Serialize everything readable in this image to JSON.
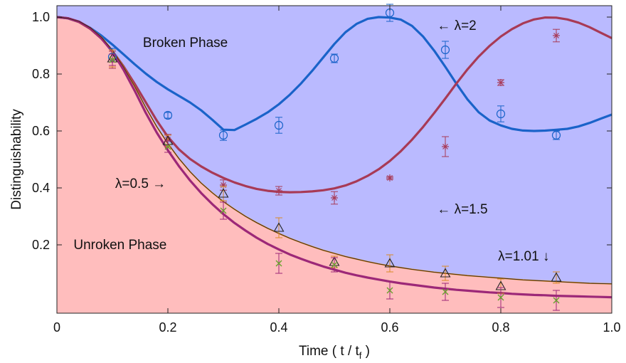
{
  "chart_data": {
    "type": "line",
    "title": "",
    "xlabel": "Time ( t / t",
    "xlabel_sub": "f",
    "xlabel_end": " )",
    "ylabel": "Distinguishability",
    "xlim": [
      0,
      1.0
    ],
    "ylim": [
      -0.04,
      1.04
    ],
    "x_ticks": [
      0,
      0.2,
      0.4,
      0.6,
      0.8,
      1.0
    ],
    "x_tick_labels": [
      "0",
      "0.2",
      "0.4",
      "0.6",
      "0.8",
      "1.0"
    ],
    "y_ticks": [
      0.2,
      0.4,
      0.6,
      0.8,
      1.0
    ],
    "y_tick_labels": [
      "0.2",
      "0.4",
      "0.6",
      "0.8",
      "1.0"
    ],
    "grid": false,
    "regions": [
      {
        "label": "Broken Phase",
        "color": "#babaff"
      },
      {
        "label": "Unroken Phase",
        "color": "#ffbdbd"
      }
    ],
    "series": [
      {
        "name": "λ=2",
        "color": "#1a63c9",
        "marker": "circle",
        "curve": {
          "x": [
            0,
            0.02,
            0.04,
            0.06,
            0.08,
            0.1,
            0.12,
            0.14,
            0.16,
            0.18,
            0.2,
            0.22,
            0.24,
            0.26,
            0.28,
            0.3,
            0.32,
            0.34,
            0.36,
            0.38,
            0.4,
            0.42,
            0.44,
            0.46,
            0.48,
            0.5,
            0.52,
            0.54,
            0.56,
            0.58,
            0.6,
            0.62,
            0.64,
            0.66,
            0.68,
            0.7,
            0.72,
            0.74,
            0.76,
            0.78,
            0.8,
            0.82,
            0.84,
            0.86,
            0.88,
            0.9,
            0.92,
            0.94,
            0.96,
            0.98,
            1.0
          ],
          "y": [
            1.0,
            0.9956,
            0.9827,
            0.9621,
            0.9351,
            0.9035,
            0.8692,
            0.8346,
            0.8017,
            0.7721,
            0.7462,
            0.7233,
            0.7,
            0.6725,
            0.6395,
            0.6044,
            0.6032,
            0.6224,
            0.6427,
            0.6655,
            0.6937,
            0.7278,
            0.7671,
            0.8111,
            0.8582,
            0.9056,
            0.9468,
            0.9761,
            0.9939,
            1.0,
            0.9982,
            0.991,
            0.969,
            0.9314,
            0.8821,
            0.8253,
            0.7661,
            0.7107,
            0.6661,
            0.6365,
            0.6195,
            0.6075,
            0.6014,
            0.5999,
            0.6012,
            0.6042,
            0.6075,
            0.6158,
            0.6283,
            0.6431,
            0.6574
          ]
        },
        "points": {
          "x": [
            0.1,
            0.2,
            0.3,
            0.4,
            0.5,
            0.6,
            0.7,
            0.8,
            0.9
          ],
          "y": [
            0.86,
            0.655,
            0.585,
            0.62,
            0.855,
            1.015,
            0.885,
            0.66,
            0.585
          ],
          "err": [
            0.03,
            0.01,
            0.018,
            0.028,
            0.015,
            0.03,
            0.03,
            0.028,
            0.015
          ]
        }
      },
      {
        "name": "λ=1.5",
        "color": "#a83a56",
        "marker": "star",
        "curve": {
          "x": [
            0,
            0.02,
            0.04,
            0.06,
            0.08,
            0.1,
            0.12,
            0.14,
            0.16,
            0.18,
            0.2,
            0.22,
            0.24,
            0.26,
            0.28,
            0.3,
            0.32,
            0.34,
            0.36,
            0.38,
            0.4,
            0.42,
            0.44,
            0.46,
            0.48,
            0.5,
            0.52,
            0.54,
            0.56,
            0.58,
            0.6,
            0.62,
            0.64,
            0.66,
            0.68,
            0.7,
            0.72,
            0.74,
            0.76,
            0.78,
            0.8,
            0.82,
            0.84,
            0.86,
            0.88,
            0.9,
            0.92,
            0.94,
            0.96,
            0.98,
            1.0
          ],
          "y": [
            1.0,
            0.9958,
            0.9826,
            0.9588,
            0.9246,
            0.8807,
            0.8272,
            0.7663,
            0.7015,
            0.6366,
            0.5794,
            0.5353,
            0.5018,
            0.4754,
            0.4535,
            0.4349,
            0.4193,
            0.4066,
            0.3966,
            0.3898,
            0.386,
            0.3848,
            0.3854,
            0.3877,
            0.3917,
            0.3983,
            0.4085,
            0.4232,
            0.4423,
            0.4656,
            0.4944,
            0.5292,
            0.5694,
            0.6142,
            0.6631,
            0.7141,
            0.7667,
            0.8165,
            0.8609,
            0.8993,
            0.9317,
            0.9578,
            0.9779,
            0.9917,
            0.9986,
            0.9981,
            0.9917,
            0.9804,
            0.9645,
            0.9452,
            0.9261
          ]
        },
        "points": {
          "x": [
            0.1,
            0.2,
            0.3,
            0.4,
            0.5,
            0.6,
            0.7,
            0.8,
            0.9
          ],
          "y": [
            0.85,
            0.57,
            0.41,
            0.39,
            0.365,
            0.435,
            0.545,
            0.77,
            0.935
          ],
          "err": [
            0.03,
            0.018,
            0.018,
            0.015,
            0.022,
            0.005,
            0.035,
            0.01,
            0.022
          ]
        }
      },
      {
        "name": "λ=1.01",
        "color": "#d98a27",
        "marker": "triangle",
        "curve": {
          "x": [
            0,
            0.02,
            0.04,
            0.06,
            0.08,
            0.1,
            0.12,
            0.14,
            0.16,
            0.18,
            0.2,
            0.22,
            0.24,
            0.26,
            0.28,
            0.3,
            0.32,
            0.34,
            0.36,
            0.38,
            0.4,
            0.42,
            0.44,
            0.46,
            0.48,
            0.5,
            0.52,
            0.54,
            0.56,
            0.58,
            0.6,
            0.62,
            0.64,
            0.66,
            0.68,
            0.7,
            0.72,
            0.74,
            0.76,
            0.78,
            0.8,
            0.82,
            0.84,
            0.86,
            0.88,
            0.9,
            0.92,
            0.94,
            0.96,
            0.98,
            1.0
          ],
          "y": [
            1.0,
            0.996,
            0.985,
            0.963,
            0.93,
            0.884,
            0.825,
            0.757,
            0.683,
            0.615,
            0.556,
            0.503,
            0.457,
            0.417,
            0.383,
            0.352,
            0.325,
            0.3,
            0.278,
            0.258,
            0.24,
            0.223,
            0.208,
            0.194,
            0.181,
            0.17,
            0.159,
            0.15,
            0.141,
            0.133,
            0.126,
            0.12,
            0.114,
            0.109,
            0.104,
            0.1,
            0.096,
            0.092,
            0.089,
            0.086,
            0.083,
            0.08,
            0.077,
            0.075,
            0.073,
            0.071,
            0.069,
            0.067,
            0.065,
            0.064,
            0.063
          ]
        },
        "points": {
          "x": [
            0.1,
            0.2,
            0.3,
            0.4,
            0.5,
            0.6,
            0.7,
            0.8,
            0.9
          ],
          "y": [
            0.855,
            0.565,
            0.38,
            0.26,
            0.14,
            0.135,
            0.1,
            0.055,
            0.085
          ],
          "err": [
            0.03,
            0.02,
            0.025,
            0.035,
            0.02,
            0.03,
            0.025,
            0.025,
            0.02
          ]
        }
      },
      {
        "name": "λ=0.5",
        "color": "#9c2878",
        "marker": "x",
        "curve": {
          "x": [
            0,
            0.02,
            0.04,
            0.06,
            0.08,
            0.1,
            0.12,
            0.14,
            0.16,
            0.18,
            0.2,
            0.22,
            0.24,
            0.26,
            0.28,
            0.3,
            0.32,
            0.34,
            0.36,
            0.38,
            0.4,
            0.42,
            0.44,
            0.46,
            0.48,
            0.5,
            0.52,
            0.54,
            0.56,
            0.58,
            0.6,
            0.62,
            0.64,
            0.66,
            0.68,
            0.7,
            0.72,
            0.74,
            0.76,
            0.78,
            0.8,
            0.82,
            0.84,
            0.86,
            0.88,
            0.9,
            0.92,
            0.94,
            0.96,
            0.98,
            1.0
          ],
          "y": [
            1.0,
            0.996,
            0.984,
            0.961,
            0.926,
            0.878,
            0.815,
            0.742,
            0.664,
            0.594,
            0.532,
            0.476,
            0.426,
            0.382,
            0.343,
            0.308,
            0.277,
            0.25,
            0.225,
            0.203,
            0.184,
            0.166,
            0.151,
            0.137,
            0.124,
            0.113,
            0.102,
            0.093,
            0.085,
            0.078,
            0.071,
            0.065,
            0.06,
            0.055,
            0.05,
            0.046,
            0.042,
            0.039,
            0.036,
            0.033,
            0.031,
            0.028,
            0.026,
            0.024,
            0.023,
            0.021,
            0.02,
            0.019,
            0.018,
            0.017,
            0.016
          ]
        },
        "points": {
          "x": [
            0.1,
            0.2,
            0.3,
            0.4,
            0.5,
            0.6,
            0.7,
            0.8,
            0.9
          ],
          "y": [
            0.85,
            0.545,
            0.32,
            0.135,
            0.13,
            0.04,
            0.035,
            0.015,
            0.005
          ],
          "err": [
            0.02,
            0.02,
            0.03,
            0.035,
            0.025,
            0.03,
            0.03,
            0.035,
            0.035
          ]
        }
      }
    ],
    "annotations": [
      {
        "text": "Broken Phase",
        "x": 0.155,
        "y": 0.895
      },
      {
        "text": "Unroken Phase",
        "x": 0.03,
        "y": 0.185
      },
      {
        "text": "← λ=2",
        "x": 0.685,
        "y": 0.955
      },
      {
        "text": "← λ=1.5",
        "x": 0.685,
        "y": 0.31
      },
      {
        "text": "λ=0.5 →",
        "x": 0.105,
        "y": 0.4
      },
      {
        "text": "λ=1.01 ↓",
        "x": 0.795,
        "y": 0.145
      }
    ]
  }
}
